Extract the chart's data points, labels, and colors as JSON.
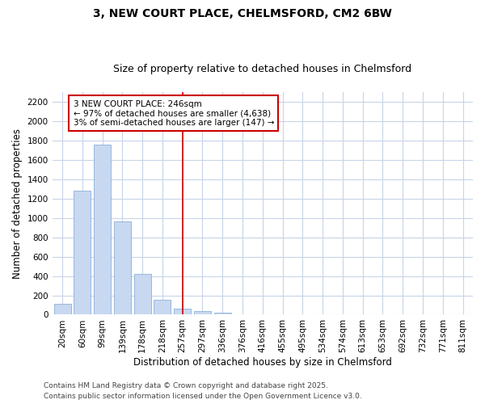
{
  "title_line1": "3, NEW COURT PLACE, CHELMSFORD, CM2 6BW",
  "title_line2": "Size of property relative to detached houses in Chelmsford",
  "xlabel": "Distribution of detached houses by size in Chelmsford",
  "ylabel": "Number of detached properties",
  "categories": [
    "20sqm",
    "60sqm",
    "99sqm",
    "139sqm",
    "178sqm",
    "218sqm",
    "257sqm",
    "297sqm",
    "336sqm",
    "376sqm",
    "416sqm",
    "455sqm",
    "495sqm",
    "534sqm",
    "574sqm",
    "613sqm",
    "653sqm",
    "692sqm",
    "732sqm",
    "771sqm",
    "811sqm"
  ],
  "bar_values": [
    110,
    1280,
    1760,
    960,
    425,
    150,
    65,
    40,
    20,
    0,
    0,
    0,
    0,
    0,
    0,
    0,
    0,
    0,
    0,
    0,
    0
  ],
  "bar_color": "#c8d8f0",
  "bar_edgecolor": "#8ab0d8",
  "vline_x_index": 6,
  "vline_color": "#cc0000",
  "ylim": [
    0,
    2300
  ],
  "yticks": [
    0,
    200,
    400,
    600,
    800,
    1000,
    1200,
    1400,
    1600,
    1800,
    2000,
    2200
  ],
  "annotation_title": "3 NEW COURT PLACE: 246sqm",
  "annotation_line1": "← 97% of detached houses are smaller (4,638)",
  "annotation_line2": "3% of semi-detached houses are larger (147) →",
  "annotation_box_color": "#cc0000",
  "background_color": "#ffffff",
  "plot_bg_color": "#ffffff",
  "grid_color": "#c8d4e8",
  "footnote_line1": "Contains HM Land Registry data © Crown copyright and database right 2025.",
  "footnote_line2": "Contains public sector information licensed under the Open Government Licence v3.0.",
  "title_fontsize": 10,
  "subtitle_fontsize": 9,
  "tick_fontsize": 7.5,
  "ylabel_fontsize": 8.5,
  "xlabel_fontsize": 8.5,
  "annotation_fontsize": 7.5,
  "footnote_fontsize": 6.5
}
